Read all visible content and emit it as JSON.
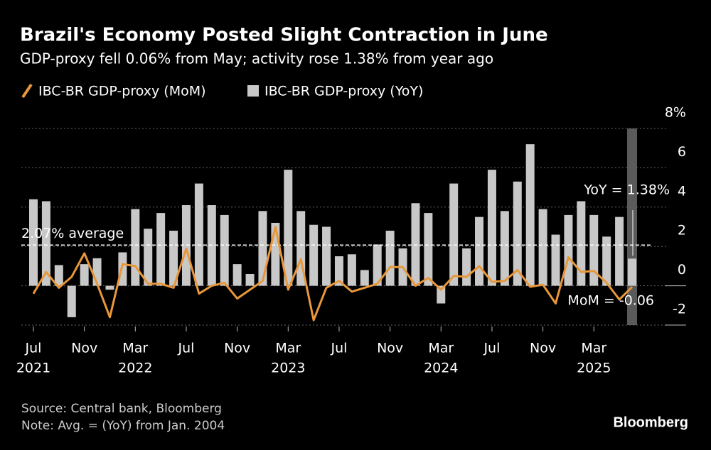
{
  "chart_data": {
    "type": "bar-line",
    "title": "Brazil's Economy Posted Slight Contraction in June",
    "subtitle": "GDP-proxy fell 0.06% from May; activity rose 1.38% from year ago",
    "categories": [
      "Jul 2021",
      "Aug 2021",
      "Sep 2021",
      "Oct 2021",
      "Nov 2021",
      "Dec 2021",
      "Jan 2022",
      "Feb 2022",
      "Mar 2022",
      "Apr 2022",
      "May 2022",
      "Jun 2022",
      "Jul 2022",
      "Aug 2022",
      "Sep 2022",
      "Oct 2022",
      "Nov 2022",
      "Dec 2022",
      "Jan 2023",
      "Feb 2023",
      "Mar 2023",
      "Apr 2023",
      "May 2023",
      "Jun 2023",
      "Jul 2023",
      "Aug 2023",
      "Sep 2023",
      "Oct 2023",
      "Nov 2023",
      "Dec 2023",
      "Jan 2024",
      "Feb 2024",
      "Mar 2024",
      "Apr 2024",
      "May 2024",
      "Jun 2024",
      "Jul 2024",
      "Aug 2024",
      "Sep 2024",
      "Oct 2024",
      "Nov 2024",
      "Dec 2024",
      "Jan 2025",
      "Feb 2025",
      "Mar 2025",
      "Apr 2025",
      "May 2025",
      "Jun 2025"
    ],
    "series": [
      {
        "name": "IBC-BR GDP-proxy (MoM)",
        "type": "line",
        "color": "#e8973a",
        "values": [
          -0.4,
          0.7,
          -0.1,
          0.45,
          1.65,
          0.1,
          -1.6,
          1.1,
          1.0,
          0.1,
          0.1,
          -0.1,
          1.9,
          -0.4,
          0.0,
          0.15,
          -0.65,
          -0.2,
          0.25,
          3.0,
          -0.2,
          1.35,
          -1.75,
          -0.1,
          0.25,
          -0.3,
          -0.1,
          0.1,
          0.95,
          0.95,
          0.0,
          0.4,
          -0.2,
          0.5,
          0.45,
          1.0,
          0.2,
          0.25,
          0.8,
          -0.05,
          0.05,
          -0.9,
          1.45,
          0.7,
          0.75,
          0.15,
          -0.7,
          -0.06
        ]
      },
      {
        "name": "IBC-BR GDP-proxy (YoY)",
        "type": "bar",
        "color": "#c8c8c8",
        "values": [
          4.4,
          4.3,
          1.05,
          -1.6,
          1.1,
          1.4,
          -0.2,
          1.7,
          3.9,
          2.9,
          3.7,
          2.8,
          4.1,
          5.2,
          4.1,
          3.6,
          1.1,
          0.6,
          3.8,
          3.2,
          5.9,
          3.8,
          3.1,
          3.0,
          1.5,
          1.6,
          0.8,
          2.1,
          2.8,
          1.9,
          4.2,
          3.7,
          -0.9,
          5.2,
          1.9,
          3.5,
          5.9,
          3.8,
          5.3,
          7.2,
          3.9,
          2.6,
          3.6,
          4.3,
          3.6,
          2.5,
          3.5,
          1.38
        ]
      }
    ],
    "ylim": [
      -2,
      8
    ],
    "yticks": [
      -2,
      0,
      2,
      4,
      6,
      {
        "value": 8,
        "label": "8%"
      }
    ],
    "grid": true,
    "xticks": [
      {
        "value": "Jul 2021",
        "label": "Jul"
      },
      {
        "value": "Nov 2021",
        "label": "Nov"
      },
      {
        "value": "Mar 2022",
        "label": "Mar"
      },
      {
        "value": "Jul 2022",
        "label": "Jul"
      },
      {
        "value": "Nov 2022",
        "label": "Nov"
      },
      {
        "value": "Mar 2023",
        "label": "Mar"
      },
      {
        "value": "Jul 2023",
        "label": "Jul"
      },
      {
        "value": "Nov 2023",
        "label": "Nov"
      },
      {
        "value": "Mar 2024",
        "label": "Mar"
      },
      {
        "value": "Jul 2024",
        "label": "Jul"
      },
      {
        "value": "Nov 2024",
        "label": "Nov"
      },
      {
        "value": "Mar 2025",
        "label": "Mar"
      }
    ],
    "xtick_years": [
      {
        "value": "Jul 2021",
        "label": "2021"
      },
      {
        "value": "Mar 2022",
        "label": "2022"
      },
      {
        "value": "Mar 2023",
        "label": "2023"
      },
      {
        "value": "Mar 2024",
        "label": "2024"
      },
      {
        "value": "Mar 2025",
        "label": "2025"
      }
    ],
    "average": {
      "value": 2.07,
      "label": "2.07% average"
    },
    "annotations": [
      {
        "label": "YoY = 1.38%"
      },
      {
        "label": "MoM = -0.06"
      }
    ],
    "source": "Source: Central bank, Bloomberg",
    "note": "Note: Avg. = (YoY) from Jan. 2004",
    "brand": "Bloomberg"
  }
}
